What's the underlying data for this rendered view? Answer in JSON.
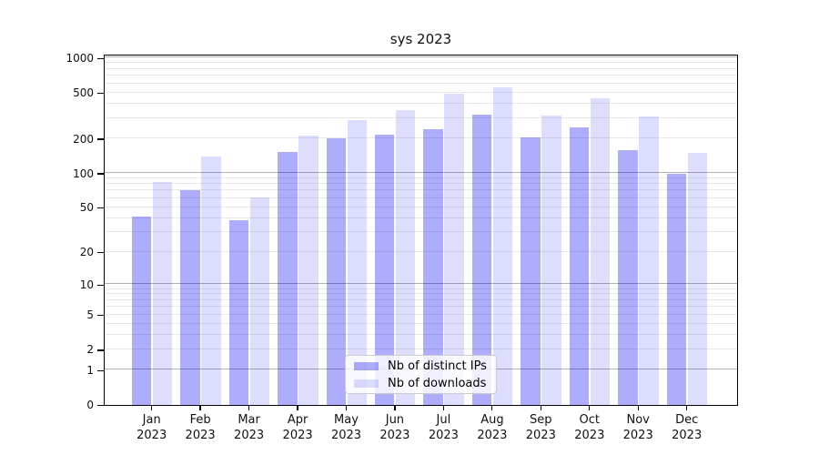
{
  "title": "sys 2023",
  "chart_data": {
    "type": "bar",
    "title": "sys 2023",
    "xlabel": "",
    "ylabel": "",
    "y_scale": "log1p (position proportional to log10(value+1))",
    "grid": true,
    "legend_position": "bottom-center",
    "ylim": [
      0,
      1100
    ],
    "y_ticks": [
      1000,
      500,
      200,
      100,
      50,
      20,
      10,
      5,
      2,
      1,
      0
    ],
    "categories": [
      "Jan 2023",
      "Feb 2023",
      "Mar 2023",
      "Apr 2023",
      "May 2023",
      "Jun 2023",
      "Jul 2023",
      "Aug 2023",
      "Sep 2023",
      "Oct 2023",
      "Nov 2023",
      "Dec 2023"
    ],
    "category_months": [
      "Jan",
      "Feb",
      "Mar",
      "Apr",
      "May",
      "Jun",
      "Jul",
      "Aug",
      "Sep",
      "Oct",
      "Nov",
      "Dec"
    ],
    "category_year": "2023",
    "series": [
      {
        "name": "Nb of distinct IPs",
        "color": "rgba(10,10,242,0.335)",
        "values": [
          41,
          70,
          38,
          153,
          200,
          215,
          242,
          320,
          205,
          251,
          158,
          99
        ]
      },
      {
        "name": "Nb of downloads",
        "color": "rgba(20,20,240,0.145)",
        "values": [
          84,
          140,
          61,
          210,
          288,
          350,
          485,
          550,
          315,
          448,
          310,
          150
        ]
      }
    ],
    "colors": {
      "grid_major": "#b0b0b0",
      "grid_minor": "#e8e8e8",
      "axis": "#000000",
      "legend_border": "#cccccc",
      "legend_bg": "rgba(255,255,255,0.8)"
    }
  }
}
